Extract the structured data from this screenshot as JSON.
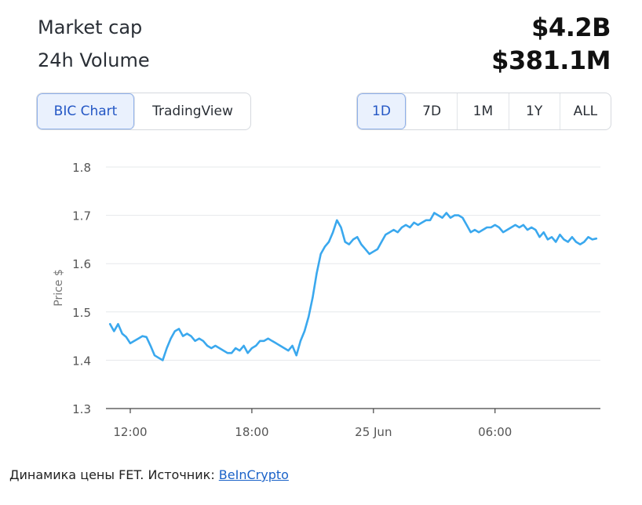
{
  "stats": {
    "market_cap_label": "Market cap",
    "market_cap_value": "$4.2B",
    "volume_label": "24h Volume",
    "volume_value": "$381.1M"
  },
  "source_toggle": {
    "bic": "BIC Chart",
    "tradingview": "TradingView",
    "active": "BIC Chart"
  },
  "range_toggle": {
    "items": [
      "1D",
      "7D",
      "1M",
      "1Y",
      "ALL"
    ],
    "active": "1D"
  },
  "caption": {
    "text": "Динамика цены FET. Источник: ",
    "link": "BeInCrypto"
  },
  "colors": {
    "line": "#3aa8ee",
    "grid": "#e6e8eb",
    "accent": "#2457c5"
  },
  "chart_data": {
    "type": "line",
    "ylabel": "Price $",
    "xlabel": "",
    "ylim": [
      1.3,
      1.8
    ],
    "yticks": [
      1.3,
      1.4,
      1.5,
      1.6,
      1.7,
      1.8
    ],
    "xticks": [
      {
        "label": "12:00",
        "x": 1.0
      },
      {
        "label": "18:00",
        "x": 7.0
      },
      {
        "label": "25 Jun",
        "x": 13.0
      },
      {
        "label": "06:00",
        "x": 19.0
      }
    ],
    "xlim": [
      -0.2,
      24.2
    ],
    "grid": "horizontal",
    "series": [
      {
        "x": [
          0.0,
          0.2,
          0.4,
          0.6,
          0.8,
          1.0,
          1.2,
          1.4,
          1.6,
          1.8,
          2.0,
          2.2,
          2.4,
          2.6,
          2.8,
          3.0,
          3.2,
          3.4,
          3.6,
          3.8,
          4.0,
          4.2,
          4.4,
          4.6,
          4.8,
          5.0,
          5.2,
          5.4,
          5.6,
          5.8,
          6.0,
          6.2,
          6.4,
          6.6,
          6.8,
          7.0,
          7.2,
          7.4,
          7.6,
          7.8,
          8.0,
          8.2,
          8.4,
          8.6,
          8.8,
          9.0,
          9.2,
          9.4,
          9.6,
          9.8,
          10.0,
          10.2,
          10.4,
          10.6,
          10.8,
          11.0,
          11.2,
          11.4,
          11.6,
          11.8,
          12.0,
          12.2,
          12.4,
          12.6,
          12.8,
          13.0,
          13.2,
          13.4,
          13.6,
          13.8,
          14.0,
          14.2,
          14.4,
          14.6,
          14.8,
          15.0,
          15.2,
          15.4,
          15.6,
          15.8,
          16.0,
          16.2,
          16.4,
          16.6,
          16.8,
          17.0,
          17.2,
          17.4,
          17.6,
          17.8,
          18.0,
          18.2,
          18.4,
          18.6,
          18.8,
          19.0,
          19.2,
          19.4,
          19.6,
          19.8,
          20.0,
          20.2,
          20.4,
          20.6,
          20.8,
          21.0,
          21.2,
          21.4,
          21.6,
          21.8,
          22.0,
          22.2,
          22.4,
          22.6,
          22.8,
          23.0,
          23.2,
          23.4,
          23.6,
          23.8,
          24.0
        ],
        "y": [
          1.475,
          1.46,
          1.475,
          1.455,
          1.448,
          1.435,
          1.44,
          1.445,
          1.45,
          1.448,
          1.43,
          1.41,
          1.405,
          1.4,
          1.425,
          1.445,
          1.46,
          1.465,
          1.45,
          1.455,
          1.45,
          1.44,
          1.445,
          1.44,
          1.43,
          1.425,
          1.43,
          1.425,
          1.42,
          1.415,
          1.415,
          1.425,
          1.42,
          1.43,
          1.415,
          1.425,
          1.43,
          1.44,
          1.44,
          1.445,
          1.44,
          1.435,
          1.43,
          1.425,
          1.42,
          1.43,
          1.41,
          1.44,
          1.46,
          1.49,
          1.53,
          1.58,
          1.62,
          1.635,
          1.645,
          1.665,
          1.69,
          1.675,
          1.645,
          1.64,
          1.65,
          1.655,
          1.64,
          1.63,
          1.62,
          1.625,
          1.63,
          1.645,
          1.66,
          1.665,
          1.67,
          1.665,
          1.675,
          1.68,
          1.675,
          1.685,
          1.68,
          1.685,
          1.69,
          1.69,
          1.705,
          1.7,
          1.695,
          1.705,
          1.695,
          1.7,
          1.7,
          1.695,
          1.68,
          1.665,
          1.67,
          1.665,
          1.67,
          1.675,
          1.675,
          1.68,
          1.675,
          1.665,
          1.67,
          1.675,
          1.68,
          1.675,
          1.68,
          1.67,
          1.675,
          1.67,
          1.655,
          1.665,
          1.65,
          1.655,
          1.645,
          1.66,
          1.65,
          1.645,
          1.655,
          1.645,
          1.64,
          1.645,
          1.655,
          1.65,
          1.652
        ]
      }
    ]
  }
}
